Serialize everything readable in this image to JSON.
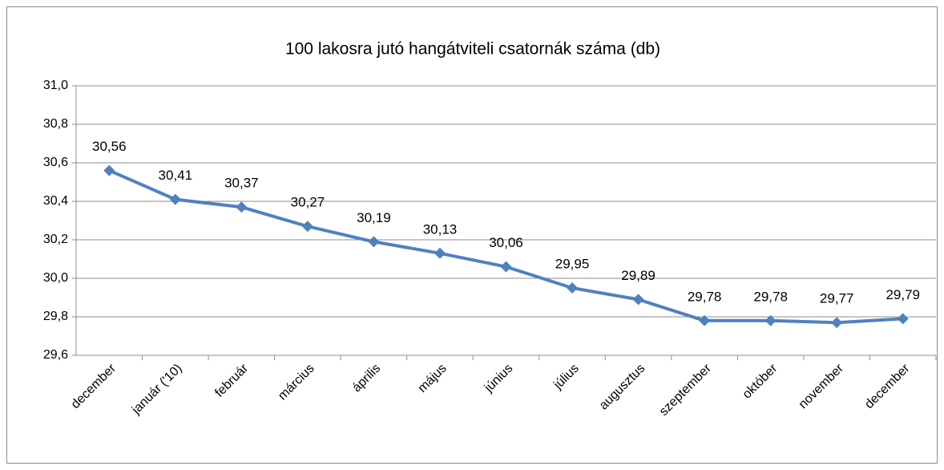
{
  "chart_data": {
    "type": "line",
    "title": "100 lakosra jutó hangátviteli csatornák száma (db)",
    "categories": [
      "december",
      "január ('10)",
      "február",
      "március",
      "április",
      "május",
      "június",
      "július",
      "augusztus",
      "szeptember",
      "október",
      "november",
      "december"
    ],
    "series": [
      {
        "name": "100 lakosra jutó hangátviteli csatornák száma (db)",
        "color": "#4f81bd",
        "values": [
          30.56,
          30.41,
          30.37,
          30.27,
          30.19,
          30.13,
          30.06,
          29.95,
          29.89,
          29.78,
          29.78,
          29.77,
          29.79
        ],
        "value_labels": [
          "30,56",
          "30,41",
          "30,37",
          "30,27",
          "30,19",
          "30,13",
          "30,06",
          "29,95",
          "29,89",
          "29,78",
          "29,78",
          "29,77",
          "29,79"
        ]
      }
    ],
    "ylim": [
      29.6,
      31.0
    ],
    "yticks": [
      {
        "value": 29.6,
        "label": "29,6"
      },
      {
        "value": 29.8,
        "label": "29,8"
      },
      {
        "value": 30.0,
        "label": "30,0"
      },
      {
        "value": 30.2,
        "label": "30,2"
      },
      {
        "value": 30.4,
        "label": "30,4"
      },
      {
        "value": 30.6,
        "label": "30,6"
      },
      {
        "value": 30.8,
        "label": "30,8"
      },
      {
        "value": 31.0,
        "label": "31,0"
      }
    ],
    "grid": true
  }
}
